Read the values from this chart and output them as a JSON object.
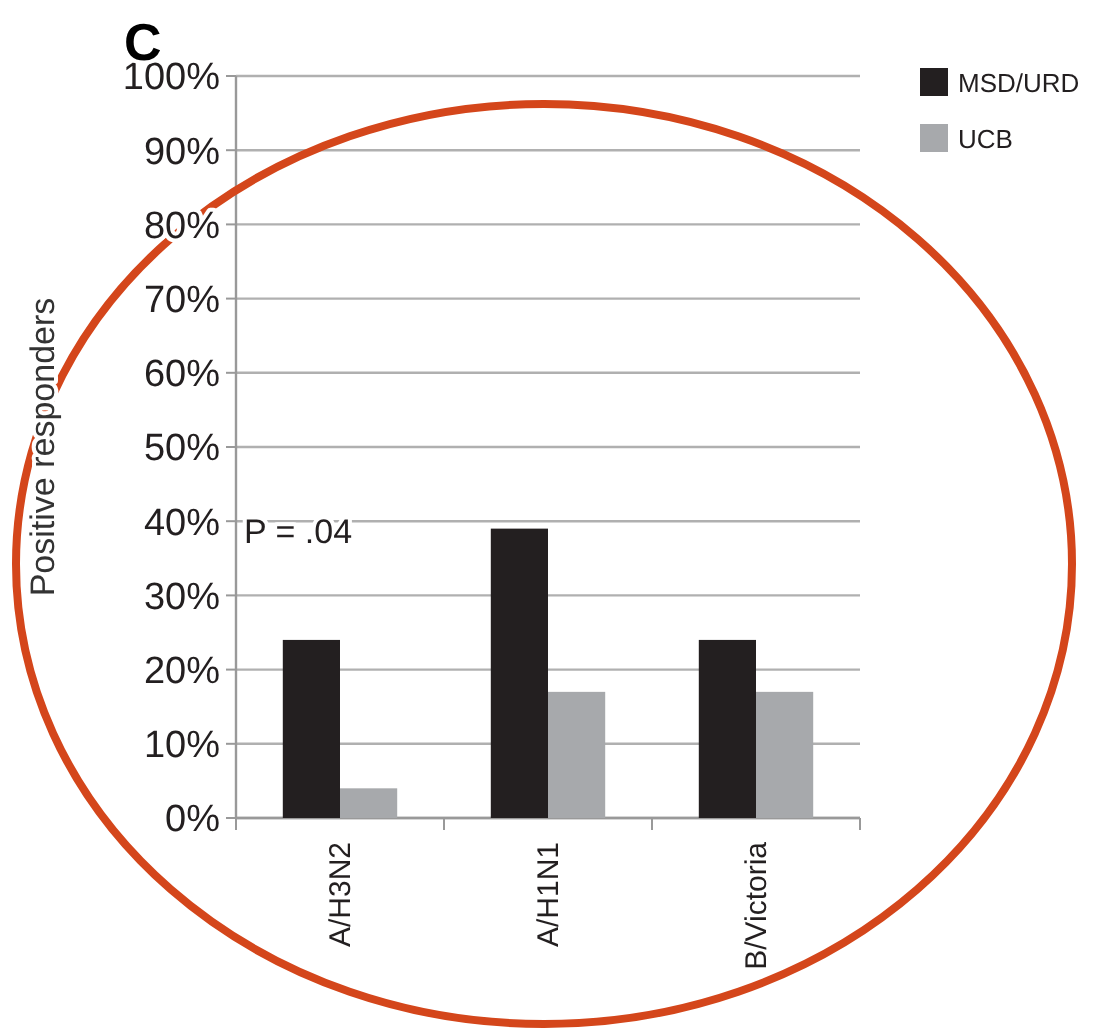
{
  "chart_data": {
    "type": "bar",
    "ylabel": "Positive responders",
    "categories": [
      "A/H3N2",
      "A/H1N1",
      "B/Victoria"
    ],
    "series": [
      {
        "name": "MSD/URD",
        "color": "#231f20",
        "values": [
          24,
          39,
          24
        ]
      },
      {
        "name": "UCB",
        "color": "#a7a9ac",
        "values": [
          4,
          17,
          17
        ]
      }
    ],
    "ylim": [
      0,
      100
    ],
    "yticks": [
      {
        "value": 0,
        "label": "0%"
      },
      {
        "value": 10,
        "label": "10%"
      },
      {
        "value": 20,
        "label": "20%"
      },
      {
        "value": 30,
        "label": "30%"
      },
      {
        "value": 40,
        "label": "40%"
      },
      {
        "value": 50,
        "label": "50%"
      },
      {
        "value": 60,
        "label": "60%"
      },
      {
        "value": 70,
        "label": "70%"
      },
      {
        "value": 80,
        "label": "80%"
      },
      {
        "value": 90,
        "label": "90%"
      },
      {
        "value": 100,
        "label": "100%"
      }
    ],
    "grid": "y",
    "legend": "top right",
    "annotations": [
      "P = .04",
      "C"
    ]
  }
}
